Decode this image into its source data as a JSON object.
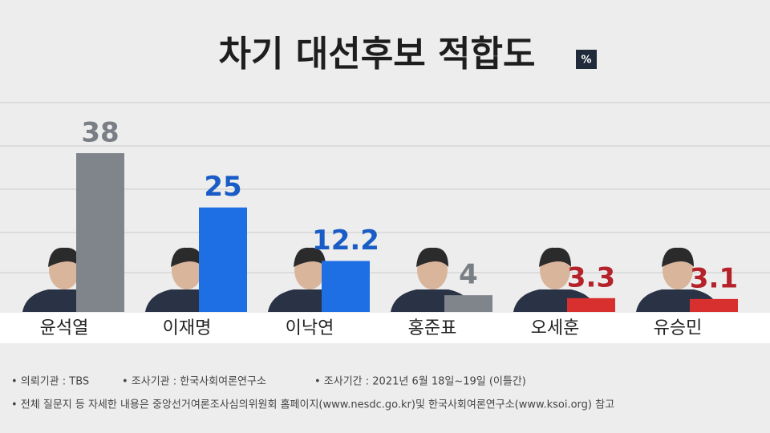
{
  "chart_data": {
    "type": "bar",
    "title": "차기 대선후보 적합도",
    "unit": "%",
    "categories": [
      "윤석열",
      "이재명",
      "이낙연",
      "홍준표",
      "오세훈",
      "유승민"
    ],
    "values": [
      38,
      25,
      12.2,
      4,
      3.3,
      3.1
    ],
    "colors": [
      "#80858c",
      "#1d6fe3",
      "#1d6fe3",
      "#80858c",
      "#d8302e",
      "#d8302e"
    ],
    "label_colors": [
      "#7a7f86",
      "#1a5cc6",
      "#1a5cc6",
      "#7a7f86",
      "#b5222a",
      "#b5222a"
    ],
    "notes": [
      "• 의뢰기관 : TBS",
      "• 조사기관 : 한국사회여론연구소",
      "• 조사기간 : 2021년 6월 18일~19일 (이틀간)",
      "• 전체 질문지 등 자세한 내용은 중앙선거여론조사심의위원회 홈페이지(www.nesdc.go.kr)및 한국사회여론연구소(www.ksoi.org) 참고"
    ]
  }
}
